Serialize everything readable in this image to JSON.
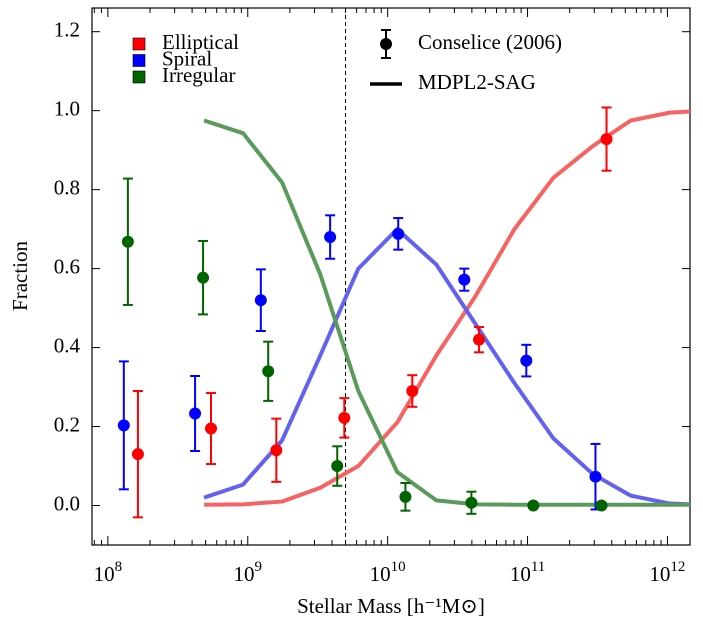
{
  "chart_data": {
    "type": "scatter",
    "x_label": "Stellar Mass [h⁻¹M⊙]",
    "y_label": "Fraction",
    "log_x": true,
    "xlim": [
      77000000.0,
      1450000000000.0
    ],
    "ylim": [
      -0.1,
      1.26
    ],
    "xticks": [
      {
        "value": 100000000.0,
        "label": "10^8"
      },
      {
        "value": 1000000000.0,
        "label": "10^9"
      },
      {
        "value": 10000000000.0,
        "label": "10^10"
      },
      {
        "value": 100000000000.0,
        "label": "10^11"
      },
      {
        "value": 1000000000000.0,
        "label": "10^12"
      }
    ],
    "yticks": [
      {
        "value": 0,
        "label": "0.0"
      },
      {
        "value": 0.2,
        "label": "0.2"
      },
      {
        "value": 0.4,
        "label": "0.4"
      },
      {
        "value": 0.6,
        "label": "0.6"
      },
      {
        "value": 0.8,
        "label": "0.8"
      },
      {
        "value": 1,
        "label": "1.0"
      },
      {
        "value": 1.2,
        "label": "1.2"
      }
    ],
    "vline": 5000000000.0,
    "points_legend": "Conselice (2006)",
    "lines_legend": "MDPL2-SAG",
    "line_x": [
      487000000.0,
      925000000.0,
      1760000000.0,
      3300000000.0,
      6170000000.0,
      11700000000.0,
      22300000000.0,
      42400000000.0,
      80600000000.0,
      153000000000.0,
      292000000000.0,
      546000000000.0,
      1040000000000.0,
      1450000000000.0
    ],
    "series": [
      {
        "name": "Elliptical",
        "color": "#ff0000",
        "line_color": "#f56363",
        "x": [
          164000000.0,
          546000000.0,
          1600000000.0,
          4900000000.0,
          15000000000.0,
          45000000000.0,
          367000000000.0
        ],
        "values": [
          0.13,
          0.195,
          0.14,
          0.222,
          0.29,
          0.42,
          0.928
        ],
        "errors": [
          0.16,
          0.09,
          0.08,
          0.05,
          0.04,
          0.032,
          0.08
        ],
        "line_values": [
          0.002,
          0.003,
          0.01,
          0.045,
          0.1,
          0.21,
          0.38,
          0.53,
          0.7,
          0.83,
          0.91,
          0.975,
          0.995,
          0.998
        ]
      },
      {
        "name": "Spiral",
        "color": "#0000ff",
        "line_color": "#6262ee",
        "x": [
          130000000.0,
          420000000.0,
          1240000000.0,
          3880000000.0,
          11900000000.0,
          35300000000.0,
          98000000000.0,
          306000000000.0
        ],
        "values": [
          0.203,
          0.233,
          0.52,
          0.68,
          0.688,
          0.572,
          0.367,
          0.073
        ],
        "errors": [
          0.162,
          0.095,
          0.078,
          0.055,
          0.04,
          0.028,
          0.04,
          0.083
        ],
        "line_values": [
          0.02,
          0.053,
          0.165,
          0.38,
          0.6,
          0.7,
          0.61,
          0.46,
          0.31,
          0.17,
          0.08,
          0.025,
          0.005,
          0.003
        ]
      },
      {
        "name": "Irregular",
        "color": "#006400",
        "line_color": "#5a9a5a",
        "x": [
          139000000.0,
          479000000.0,
          1400000000.0,
          4360000000.0,
          13400000000.0,
          39700000000.0,
          110000000000.0,
          338000000000.0
        ],
        "values": [
          0.668,
          0.577,
          0.34,
          0.1,
          0.022,
          0.007,
          0.0,
          0.0
        ],
        "errors": [
          0.16,
          0.093,
          0.075,
          0.05,
          0.035,
          0.028,
          null,
          null
        ],
        "line_values": [
          0.975,
          0.943,
          0.818,
          0.585,
          0.29,
          0.085,
          0.013,
          0.003,
          0.002,
          0.002,
          0.002,
          0.002,
          0.002,
          0.002
        ]
      }
    ]
  }
}
